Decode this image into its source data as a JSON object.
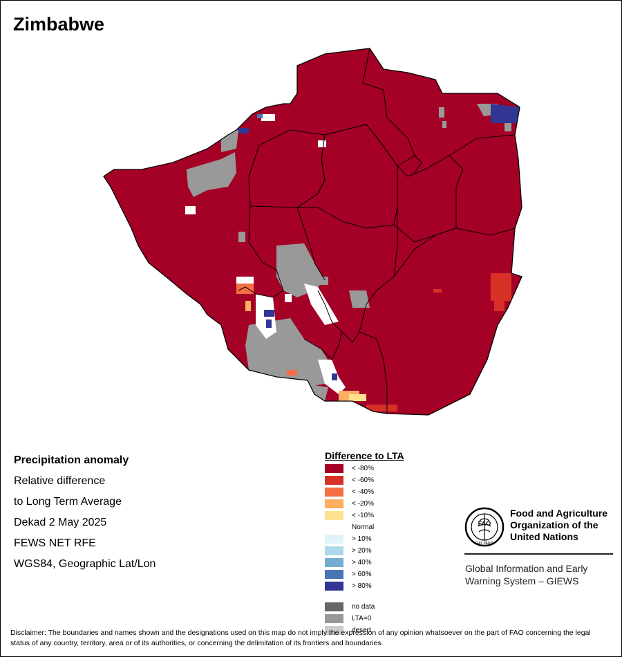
{
  "title": "Zimbabwe",
  "info": {
    "line1": "Precipitation anomaly",
    "line2": "Relative difference",
    "line3": "to Long Term Average",
    "line4": "Dekad 2 May 2025",
    "line5": "FEWS NET RFE",
    "line6": "WGS84, Geographic Lat/Lon"
  },
  "legend": {
    "title": "Difference to LTA",
    "items": [
      {
        "label": "< -80%",
        "color": "#a50026"
      },
      {
        "label": "< -60%",
        "color": "#d73027"
      },
      {
        "label": "< -40%",
        "color": "#f46d43"
      },
      {
        "label": "< -20%",
        "color": "#fdae61"
      },
      {
        "label": "< -10%",
        "color": "#fee090"
      },
      {
        "label": "Normal",
        "color": "#ffffff"
      },
      {
        "label": "> 10%",
        "color": "#e0f3f8"
      },
      {
        "label": "> 20%",
        "color": "#abd9e9"
      },
      {
        "label": "> 40%",
        "color": "#74add1"
      },
      {
        "label": "> 60%",
        "color": "#4575b4"
      },
      {
        "label": "> 80%",
        "color": "#313695"
      }
    ],
    "extra": [
      {
        "label": "no data",
        "color": "#666666"
      },
      {
        "label": "LTA=0",
        "color": "#999999"
      },
      {
        "label": "desert",
        "color": "#cccccc"
      }
    ]
  },
  "fao": {
    "logo_text": "FAO",
    "logo_motto": "FIAT PANIS",
    "name_line1": "Food and Agriculture",
    "name_line2": "Organization of the",
    "name_line3": "United Nations",
    "giews_line1": "Global Information and Early",
    "giews_line2": "Warning System – GIEWS"
  },
  "disclaimer": "Disclaimer: The boundaries and names shown and the designations used on this map do not imply the expression of any opinion whatsoever on the part of FAO concerning the legal status of any country, territory, area or of its authorities, or concerning the delimitation of its frontiers and boundaries.",
  "colors": {
    "dominant": "#a50026",
    "lta_zero": "#999999",
    "normal": "#ffffff",
    "strong_wet": "#313695"
  }
}
